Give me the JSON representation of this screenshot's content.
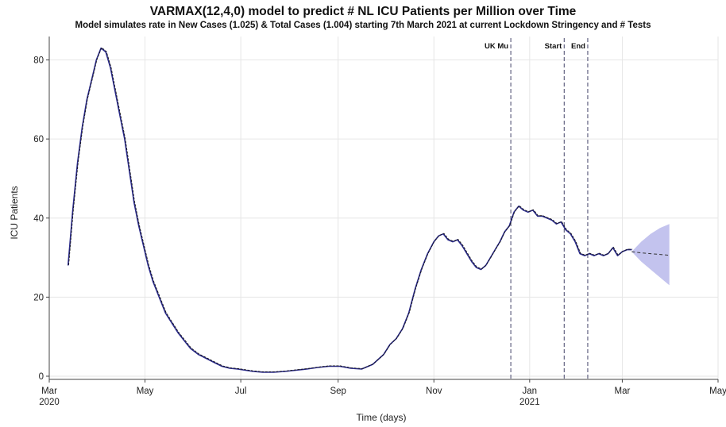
{
  "chart_data": {
    "type": "line",
    "title": "VARMAX(12,4,0) model to predict # NL ICU Patients per Million over Time",
    "subtitle": "Model simulates rate in New Cases (1.025) & Total Cases (1.004) starting 7th March 2021 at current Lockdown Stringency and # Tests",
    "xlabel": "Time (days)",
    "ylabel": "ICU Patients",
    "xlim": [
      "2020-03-01",
      "2021-05-01"
    ],
    "ylim": [
      0,
      84
    ],
    "x_ticks": [
      {
        "date": "2020-03-01",
        "label": "Mar",
        "sublabel": "2020"
      },
      {
        "date": "2020-05-01",
        "label": "May",
        "sublabel": ""
      },
      {
        "date": "2020-07-01",
        "label": "Jul",
        "sublabel": ""
      },
      {
        "date": "2020-09-01",
        "label": "Sep",
        "sublabel": ""
      },
      {
        "date": "2020-11-01",
        "label": "Nov",
        "sublabel": ""
      },
      {
        "date": "2021-01-01",
        "label": "Jan",
        "sublabel": "2021"
      },
      {
        "date": "2021-03-01",
        "label": "Mar",
        "sublabel": ""
      },
      {
        "date": "2021-05-01",
        "label": "May",
        "sublabel": ""
      }
    ],
    "y_ticks": [
      0,
      20,
      40,
      60,
      80
    ],
    "grid": true,
    "legend": "none",
    "events": [
      {
        "label": "UK Mu",
        "date": "2020-12-20"
      },
      {
        "label": "Start",
        "date": "2021-01-23"
      },
      {
        "label": "End",
        "date": "2021-02-07"
      }
    ],
    "colors": {
      "actual": "#2a2a8a",
      "fitted": "#111111",
      "forecast": "#333333",
      "interval": "#c3c3ee",
      "event_line": "#555577",
      "grid": "#e6e6e6"
    },
    "series": [
      {
        "kind": "actual",
        "x": [
          "2020-03-13",
          "2020-03-16",
          "2020-03-19",
          "2020-03-22",
          "2020-03-25",
          "2020-03-28",
          "2020-03-31",
          "2020-04-03",
          "2020-04-06",
          "2020-04-09",
          "2020-04-12",
          "2020-04-15",
          "2020-04-18",
          "2020-04-21",
          "2020-04-24",
          "2020-04-27",
          "2020-04-30",
          "2020-05-03",
          "2020-05-06",
          "2020-05-10",
          "2020-05-14",
          "2020-05-18",
          "2020-05-22",
          "2020-05-26",
          "2020-05-30",
          "2020-06-04",
          "2020-06-09",
          "2020-06-14",
          "2020-06-19",
          "2020-06-24",
          "2020-06-29",
          "2020-07-04",
          "2020-07-09",
          "2020-07-15",
          "2020-07-22",
          "2020-07-29",
          "2020-08-05",
          "2020-08-12",
          "2020-08-19",
          "2020-08-26",
          "2020-09-02",
          "2020-09-09",
          "2020-09-16",
          "2020-09-23",
          "2020-09-30",
          "2020-10-04",
          "2020-10-08",
          "2020-10-12",
          "2020-10-16",
          "2020-10-20",
          "2020-10-24",
          "2020-10-28",
          "2020-11-01",
          "2020-11-04",
          "2020-11-07",
          "2020-11-10",
          "2020-11-13",
          "2020-11-16",
          "2020-11-19",
          "2020-11-22",
          "2020-11-25",
          "2020-11-28",
          "2020-12-01",
          "2020-12-04",
          "2020-12-07",
          "2020-12-10",
          "2020-12-13",
          "2020-12-16",
          "2020-12-19",
          "2020-12-22",
          "2020-12-25",
          "2020-12-28",
          "2020-12-31",
          "2021-01-03",
          "2021-01-06",
          "2021-01-09",
          "2021-01-12",
          "2021-01-15",
          "2021-01-18",
          "2021-01-21",
          "2021-01-24",
          "2021-01-27",
          "2021-01-30",
          "2021-02-02",
          "2021-02-05",
          "2021-02-08",
          "2021-02-11",
          "2021-02-14",
          "2021-02-17",
          "2021-02-20",
          "2021-02-23",
          "2021-02-26",
          "2021-03-01",
          "2021-03-04",
          "2021-03-07"
        ],
        "values": [
          28,
          42,
          54,
          63,
          70,
          75,
          80,
          83,
          82,
          78,
          72,
          66,
          60,
          52,
          44,
          38,
          33,
          28,
          24,
          20,
          16,
          13.5,
          11,
          9,
          7,
          5.5,
          4.5,
          3.5,
          2.5,
          2,
          1.8,
          1.5,
          1.2,
          1,
          1,
          1.2,
          1.5,
          1.8,
          2.2,
          2.5,
          2.5,
          2,
          1.8,
          3,
          5.5,
          8,
          9.5,
          12,
          16,
          22,
          27,
          31,
          34,
          35.5,
          36,
          34.5,
          34,
          34.5,
          33,
          31,
          29,
          27.5,
          27,
          28,
          30,
          32,
          34,
          36.5,
          38,
          41.5,
          43,
          42,
          41.5,
          42,
          40.5,
          40.5,
          40,
          39.5,
          38.5,
          39,
          37,
          36,
          34,
          31,
          30.5,
          31,
          30.5,
          31,
          30.5,
          31,
          32.5,
          30.5,
          31.5,
          32,
          32
        ]
      },
      {
        "kind": "forecast",
        "x": [
          "2021-03-07",
          "2021-03-13",
          "2021-03-19",
          "2021-03-25",
          "2021-03-31"
        ],
        "values": [
          31.5,
          31.2,
          31,
          30.8,
          30.6
        ],
        "lower": [
          31.5,
          29,
          27,
          25,
          23
        ],
        "upper": [
          31.5,
          34,
          36,
          37.5,
          38.5
        ]
      }
    ]
  }
}
